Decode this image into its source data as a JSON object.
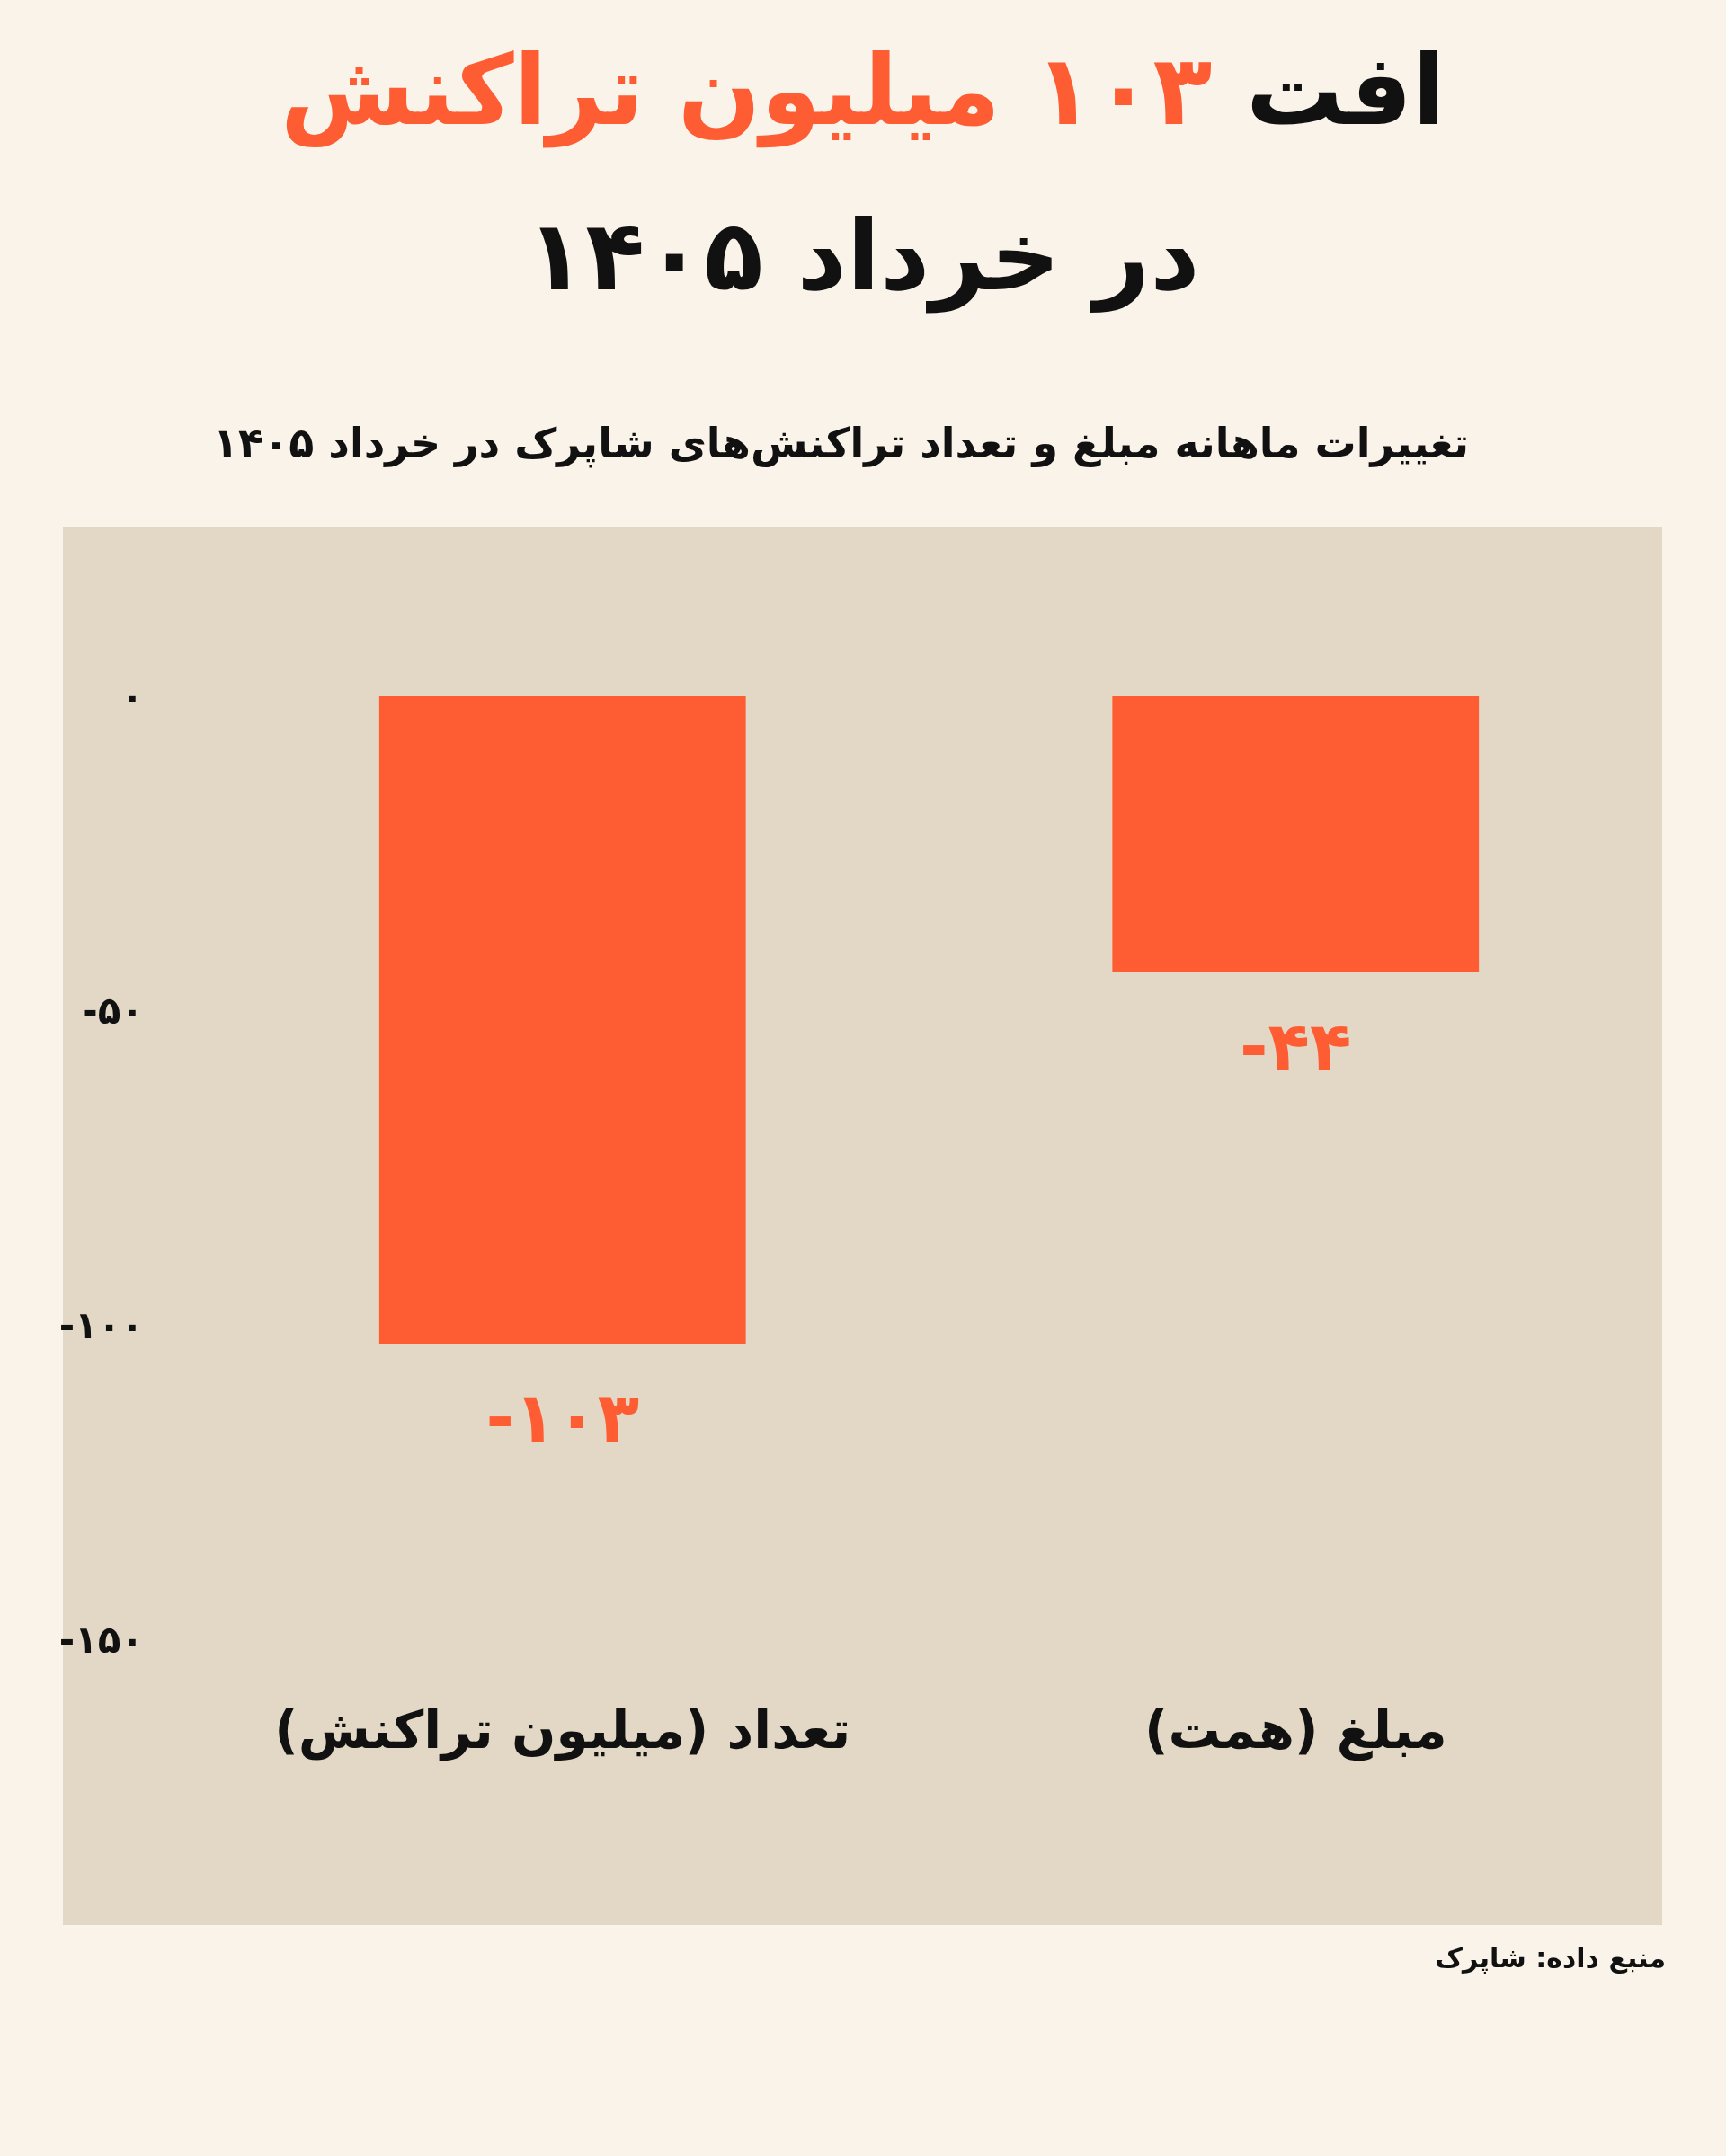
{
  "chart_data": {
    "type": "bar",
    "title": "افت ۱۰۳ میلیون تراکنش\nدر خرداد ۱۴۰۵",
    "subtitle": "تغییرات ماهانه مبلغ و تعداد تراکنش‌های شاپرک در خرداد ۱۴۰۵",
    "categories": [
      "تعداد (میلیون تراکنش)",
      "مبلغ (همت)"
    ],
    "values": [
      -103,
      -44
    ],
    "value_labels": [
      "-۱۰۳",
      "-۴۴"
    ],
    "color": "#fe5c32",
    "ylim": [
      -150,
      0
    ],
    "yticks": [
      {
        "value": 0,
        "label": "۰"
      },
      {
        "value": -50,
        "label": "-۵۰"
      },
      {
        "value": -100,
        "label": "-۱۰۰"
      },
      {
        "value": -150,
        "label": "-۱۵۰"
      }
    ],
    "annotations": [
      "منبع داده: شاپرک"
    ]
  }
}
